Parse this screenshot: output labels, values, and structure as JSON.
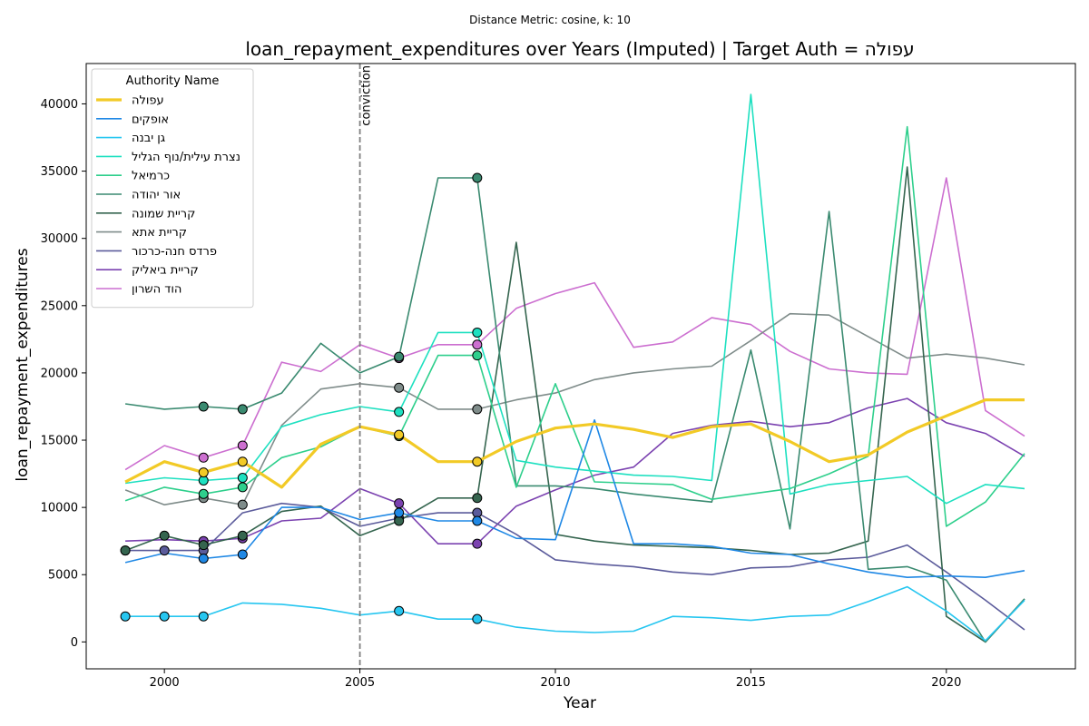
{
  "chart_data": {
    "type": "line",
    "suptitle": "Distance Metric: cosine, k: 10",
    "title": "loan_repayment_expenditures over Years (Imputed) | Target Auth = עפולה",
    "xlabel": "Year",
    "ylabel": "loan_repayment_expenditures",
    "xlim": [
      1998,
      2023.3
    ],
    "ylim": [
      -2000,
      43000
    ],
    "xticks": [
      2000,
      2005,
      2010,
      2015,
      2020
    ],
    "yticks": [
      0,
      5000,
      10000,
      15000,
      20000,
      25000,
      30000,
      35000,
      40000
    ],
    "grid": false,
    "legend": {
      "title": "Authority Name",
      "placement": "top-left"
    },
    "x": [
      1999,
      2000,
      2001,
      2002,
      2003,
      2004,
      2005,
      2006,
      2007,
      2008,
      2009,
      2010,
      2011,
      2012,
      2013,
      2014,
      2015,
      2016,
      2017,
      2018,
      2019,
      2020,
      2021,
      2022
    ],
    "vline": {
      "x": 2005,
      "label": "conviction",
      "color": "#808080"
    },
    "series": [
      {
        "name": "עפולה",
        "color": "#f2ca26",
        "linewidth": 3.2,
        "imputed_x": [
          2001,
          2002,
          2006,
          2008
        ],
        "values": [
          11900,
          13400,
          12600,
          13400,
          11500,
          14700,
          16000,
          15400,
          13400,
          13400,
          14900,
          15900,
          16200,
          15800,
          15200,
          16000,
          16200,
          14900,
          13400,
          13900,
          15600,
          16800,
          18000,
          18000
        ]
      },
      {
        "name": "אופקים",
        "color": "#1f88e5",
        "linewidth": 1.6,
        "imputed_x": [
          2001,
          2002,
          2006,
          2008
        ],
        "values": [
          5900,
          6600,
          6200,
          6500,
          10000,
          10000,
          9100,
          9600,
          9000,
          9000,
          7700,
          7600,
          16500,
          7300,
          7300,
          7100,
          6600,
          6500,
          5800,
          5200,
          4800,
          4900,
          4800,
          5300
        ]
      },
      {
        "name": "גן יבנה",
        "color": "#26c6f0",
        "linewidth": 1.6,
        "imputed_x": [
          1999,
          2000,
          2001,
          2006,
          2008
        ],
        "values": [
          1900,
          1900,
          1900,
          2900,
          2800,
          2500,
          2000,
          2300,
          1700,
          1700,
          1100,
          800,
          700,
          800,
          1900,
          1800,
          1600,
          1900,
          2000,
          3000,
          4100,
          2300,
          100,
          3100
        ]
      },
      {
        "name": "נצרת עילית/נוף הגליל",
        "color": "#1de0c0",
        "linewidth": 1.6,
        "imputed_x": [
          2001,
          2002,
          2006,
          2008
        ],
        "values": [
          11800,
          12200,
          12000,
          12200,
          16000,
          16900,
          17500,
          17100,
          23000,
          23000,
          13500,
          13000,
          12700,
          12400,
          12300,
          12000,
          40700,
          11000,
          11700,
          12000,
          12300,
          10300,
          11700,
          11400
        ]
      },
      {
        "name": "כרמיאל",
        "color": "#2ecf8c",
        "linewidth": 1.6,
        "imputed_x": [
          2001,
          2002,
          2006,
          2008
        ],
        "values": [
          10500,
          11500,
          11000,
          11500,
          13700,
          14500,
          16000,
          15300,
          21300,
          21300,
          11500,
          19200,
          11900,
          11800,
          11700,
          10600,
          11000,
          11400,
          12500,
          13800,
          38300,
          8600,
          10400,
          14000
        ]
      },
      {
        "name": "אור יהודה",
        "color": "#3a8a70",
        "linewidth": 1.6,
        "imputed_x": [
          2001,
          2002,
          2006,
          2008
        ],
        "values": [
          17700,
          17300,
          17500,
          17300,
          18500,
          22200,
          20000,
          21200,
          34500,
          34500,
          11600,
          11600,
          11400,
          11000,
          10700,
          10400,
          21700,
          8400,
          32000,
          5400,
          5600,
          4600,
          0,
          3200
        ]
      },
      {
        "name": "קריית שמונה",
        "color": "#35654f",
        "linewidth": 1.6,
        "imputed_x": [
          1999,
          2000,
          2001,
          2002,
          2006,
          2008
        ],
        "values": [
          6800,
          7900,
          7200,
          7900,
          9700,
          10100,
          7900,
          9000,
          10700,
          10700,
          29700,
          8000,
          7500,
          7200,
          7100,
          7000,
          6800,
          6500,
          6600,
          7500,
          35300,
          1900,
          0,
          3200
        ]
      },
      {
        "name": "קריית אתא",
        "color": "#7f8c8a",
        "linewidth": 1.6,
        "imputed_x": [
          2001,
          2002,
          2006,
          2008
        ],
        "values": [
          11300,
          10200,
          10700,
          10200,
          16100,
          18800,
          19200,
          18900,
          17300,
          17300,
          18000,
          18500,
          19500,
          20000,
          20300,
          20500,
          22400,
          24400,
          24300,
          22700,
          21100,
          21400,
          21100,
          20600
        ]
      },
      {
        "name": "פרדס חנה-כרכור",
        "color": "#5b5b9b",
        "linewidth": 1.6,
        "imputed_x": [
          1999,
          2000,
          2001,
          2006,
          2008
        ],
        "values": [
          6800,
          6800,
          6800,
          9600,
          10300,
          10000,
          8600,
          9200,
          9600,
          9600,
          8000,
          6100,
          5800,
          5600,
          5200,
          5000,
          5500,
          5600,
          6100,
          6300,
          7200,
          5200,
          3100,
          900
        ]
      },
      {
        "name": "קריית ביאליק",
        "color": "#7b42b0",
        "linewidth": 1.6,
        "imputed_x": [
          2001,
          2002,
          2006,
          2008
        ],
        "values": [
          7500,
          7600,
          7500,
          7700,
          9000,
          9200,
          11400,
          10300,
          7300,
          7300,
          10100,
          11300,
          12400,
          13000,
          15500,
          16100,
          16400,
          16000,
          16300,
          17400,
          18100,
          16300,
          15500,
          13800
        ]
      },
      {
        "name": "הוד השרון",
        "color": "#cc6fd0",
        "linewidth": 1.6,
        "imputed_x": [
          2001,
          2002,
          2006,
          2008
        ],
        "values": [
          12800,
          14600,
          13700,
          14600,
          20800,
          20100,
          22100,
          21100,
          22100,
          22100,
          24800,
          25900,
          26700,
          21900,
          22300,
          24100,
          23600,
          21600,
          20300,
          20000,
          19900,
          34500,
          17200,
          15300
        ]
      }
    ]
  }
}
